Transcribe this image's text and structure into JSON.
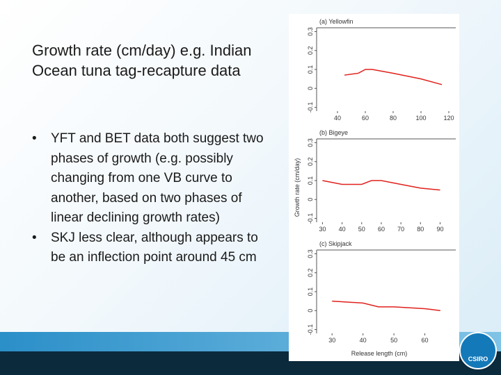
{
  "slide": {
    "title": "Growth rate (cm/day) e.g. Indian Ocean tuna tag-recapture data",
    "bullets": [
      "YFT and BET data both suggest two phases of growth (e.g. possibly changing from one VB curve to another, based on two phases of linear declining growth rates)",
      "SKJ less clear, although appears to be an inflection point around 45 cm"
    ],
    "logo": "CSIRO"
  },
  "figure": {
    "ylabel": "Growth rate (cm/day)",
    "xlabel": "Release length (cm)",
    "charts": [
      {
        "type": "line",
        "title": "(a) Yellowfin",
        "color": "#e0201b",
        "xlim": [
          25,
          125
        ],
        "xticks": [
          40,
          60,
          80,
          100,
          120
        ],
        "ylim": [
          -0.12,
          0.32
        ],
        "yticks": [
          -0.1,
          0.0,
          0.1,
          0.2,
          0.3
        ],
        "x": [
          45,
          55,
          60,
          65,
          80,
          100,
          115
        ],
        "values": [
          0.07,
          0.08,
          0.1,
          0.1,
          0.08,
          0.05,
          0.02
        ]
      },
      {
        "type": "line",
        "title": "(b) Bigeye",
        "color": "#e0201b",
        "xlim": [
          27,
          98
        ],
        "xticks": [
          30,
          40,
          50,
          60,
          70,
          80,
          90
        ],
        "ylim": [
          -0.12,
          0.32
        ],
        "yticks": [
          -0.1,
          0.0,
          0.1,
          0.2,
          0.3
        ],
        "x": [
          30,
          40,
          50,
          55,
          60,
          70,
          80,
          90
        ],
        "values": [
          0.1,
          0.08,
          0.08,
          0.1,
          0.1,
          0.08,
          0.06,
          0.05
        ]
      },
      {
        "type": "line",
        "title": "(c) Skipjack",
        "color": "#e0201b",
        "xlim": [
          25,
          70
        ],
        "xticks": [
          30,
          40,
          50,
          60
        ],
        "ylim": [
          -0.12,
          0.32
        ],
        "yticks": [
          -0.1,
          0.0,
          0.1,
          0.2,
          0.3
        ],
        "x": [
          30,
          40,
          45,
          50,
          60,
          65
        ],
        "values": [
          0.05,
          0.04,
          0.02,
          0.02,
          0.01,
          0.0
        ]
      }
    ]
  }
}
